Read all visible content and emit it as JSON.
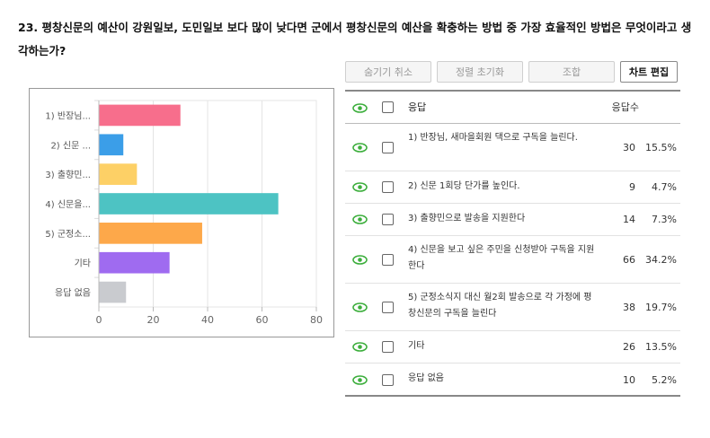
{
  "question": "23. 평창신문의 예산이 강원일보, 도민일보 보다 많이 낮다면 군에서 평창신문의 예산을 확충하는 방법 중 가장 효율적인 방법은 무엇이라고 생각하는가?",
  "toolbar": {
    "hide_cancel": "숨기기 취소",
    "reset_sort": "정렬 초기화",
    "combine": "조합",
    "edit_chart": "차트 편집"
  },
  "table": {
    "header": {
      "response": "응답",
      "count": "응답수"
    },
    "rows": [
      {
        "text": "1) 반장님, 새마을회원 댁으로 구독을 늘린다.",
        "count": "30",
        "pct": "15.5%"
      },
      {
        "text": "2) 신문 1회당 단가를 높인다.",
        "count": "9",
        "pct": "4.7%"
      },
      {
        "text": "3) 출향민으로 발송을 지원한다",
        "count": "14",
        "pct": "7.3%"
      },
      {
        "text": "4) 신문을 보고 싶은 주민을 신청받아 구독을 지원한다",
        "count": "66",
        "pct": "34.2%"
      },
      {
        "text": "5) 군정소식지 대신 월2회 발송으로 각 가정에 평창신문의 구독을 늘린다",
        "count": "38",
        "pct": "19.7%"
      },
      {
        "text": "기타",
        "count": "26",
        "pct": "13.5%"
      },
      {
        "text": "응답 없음",
        "count": "10",
        "pct": "5.2%"
      }
    ]
  },
  "colors": {
    "eye": "#3cae3c"
  },
  "chart_data": {
    "type": "bar",
    "orientation": "horizontal",
    "categories": [
      "1) 반장님...",
      "2) 신문 ...",
      "3) 출향민...",
      "4) 신문을...",
      "5) 군정소...",
      "기타",
      "응답 없음"
    ],
    "values": [
      30,
      9,
      14,
      66,
      38,
      26,
      10
    ],
    "colors": [
      "#f76e8c",
      "#3b9ee8",
      "#fdd066",
      "#4dc3c3",
      "#fda84a",
      "#9f6bf0",
      "#c9cbcf"
    ],
    "xlim": [
      0,
      80
    ],
    "xticks": [
      0,
      20,
      40,
      60,
      80
    ],
    "grid": true,
    "title": "",
    "xlabel": "",
    "ylabel": ""
  }
}
